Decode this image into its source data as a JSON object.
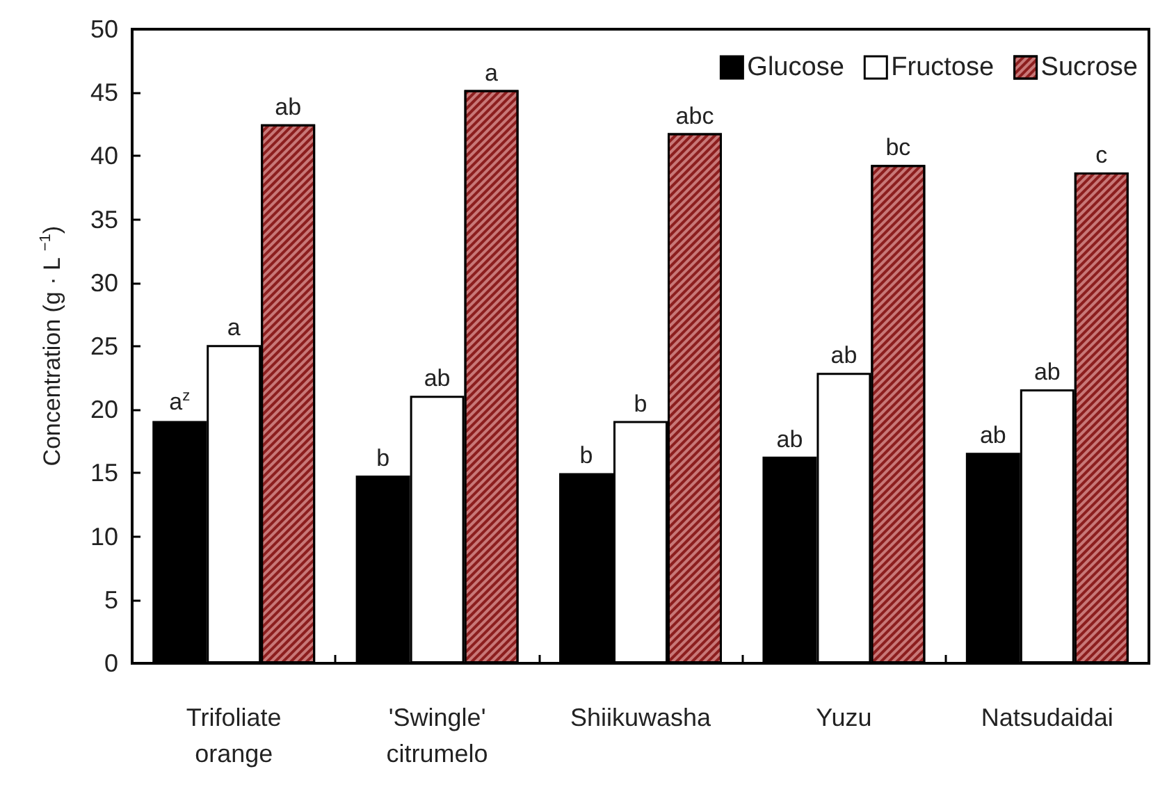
{
  "chart_data": {
    "type": "bar",
    "ylabel": "Concentration (g · L $^{−1}$)",
    "categories": [
      "Trifoliate\norange",
      "'Swingle'\ncitrumelo",
      "Shiikuwasha",
      "Yuzu",
      "Natsudaidai"
    ],
    "series": [
      {
        "name": "Glucose",
        "color": "#000000",
        "values": [
          19.1,
          14.8,
          15.0,
          16.3,
          16.6
        ],
        "value_labels": [
          "a$^{z}$",
          "b",
          "b",
          "ab",
          "ab"
        ]
      },
      {
        "name": "Fructose",
        "color": "#ffffff",
        "values": [
          25.1,
          21.1,
          19.1,
          22.9,
          21.6
        ],
        "value_labels": [
          "a",
          "ab",
          "b",
          "ab",
          "ab"
        ]
      },
      {
        "name": "Sucrose",
        "color": "#c87878",
        "values": [
          42.5,
          45.2,
          41.8,
          39.3,
          38.7
        ],
        "value_labels": [
          "ab",
          "a",
          "abc",
          "bc",
          "c"
        ]
      }
    ],
    "ylim": [
      0,
      50
    ],
    "yticks": [
      0,
      5,
      10,
      15,
      20,
      25,
      30,
      35,
      40,
      45,
      50
    ],
    "legend": "top right",
    "grid": false
  }
}
